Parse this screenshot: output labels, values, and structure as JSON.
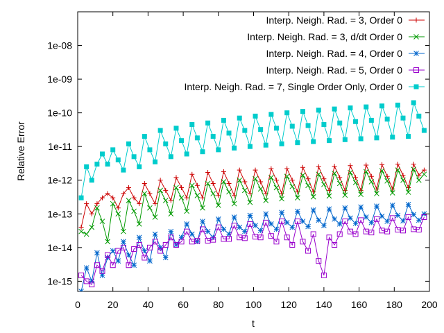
{
  "chart_data": {
    "type": "line",
    "title": "",
    "xlabel": "t",
    "ylabel": "Relative Error",
    "xscale": "linear",
    "yscale": "log",
    "xlim": [
      0,
      200
    ],
    "ylim": [
      5e-16,
      1e-07
    ],
    "xticks": [
      0,
      20,
      40,
      60,
      80,
      100,
      120,
      140,
      160,
      180,
      200
    ],
    "xtick_labels": [
      "0",
      "20",
      "40",
      "60",
      "80",
      "100",
      "120",
      "140",
      "160",
      "180",
      "200"
    ],
    "yticks": [
      1e-15,
      1e-14,
      1e-13,
      1e-12,
      1e-11,
      1e-10,
      1e-09,
      1e-08
    ],
    "ytick_labels": [
      "1e-15",
      "1e-14",
      "1e-13",
      "1e-12",
      "1e-11",
      "1e-10",
      "1e-09",
      "1e-08"
    ],
    "legend_position": "top-right",
    "series": [
      {
        "name": "Interp. Neigh. Rad. = 3, Order 0",
        "color": "#cc0000",
        "marker": "plus",
        "x": [
          2,
          5,
          8,
          11,
          14,
          17,
          20,
          23,
          26,
          29,
          32,
          35,
          38,
          41,
          44,
          47,
          50,
          53,
          56,
          59,
          62,
          65,
          68,
          71,
          74,
          77,
          80,
          83,
          86,
          89,
          92,
          95,
          98,
          101,
          104,
          107,
          110,
          113,
          116,
          119,
          122,
          125,
          128,
          131,
          134,
          137,
          140,
          143,
          146,
          149,
          152,
          155,
          158,
          161,
          164,
          167,
          170,
          173,
          176,
          179,
          182,
          185,
          188,
          191,
          194,
          197
        ],
        "values": [
          4e-14,
          2e-13,
          1e-13,
          2e-13,
          3e-13,
          4e-13,
          3e-13,
          1.5e-13,
          4e-13,
          6e-13,
          3e-13,
          2e-13,
          8e-13,
          4e-13,
          2e-13,
          1e-12,
          5e-13,
          2.5e-13,
          1.2e-12,
          6e-13,
          3e-13,
          1.5e-12,
          7e-13,
          3e-13,
          1.7e-12,
          8e-13,
          3.5e-13,
          1.8e-12,
          8e-13,
          3.5e-13,
          2e-12,
          9e-13,
          4e-13,
          2e-12,
          9e-13,
          4e-13,
          2.2e-12,
          1e-12,
          4e-13,
          2.2e-12,
          1e-12,
          4.5e-13,
          2.4e-12,
          1.1e-12,
          4.5e-13,
          2.5e-12,
          1.1e-12,
          5e-13,
          2.6e-12,
          1.2e-12,
          5e-13,
          2.7e-12,
          1.2e-12,
          5e-13,
          2.8e-12,
          1.3e-12,
          5.5e-13,
          2.9e-12,
          1.3e-12,
          5.5e-13,
          3e-12,
          1.4e-12,
          6e-13,
          3e-12,
          1.4e-12,
          2e-12
        ]
      },
      {
        "name": "Interp. Neigh. Rad. = 3, d/dt Order 0",
        "color": "#009900",
        "marker": "cross",
        "x": [
          2,
          5,
          8,
          11,
          14,
          17,
          20,
          23,
          26,
          29,
          32,
          35,
          38,
          41,
          44,
          47,
          50,
          53,
          56,
          59,
          62,
          65,
          68,
          71,
          74,
          77,
          80,
          83,
          86,
          89,
          92,
          95,
          98,
          101,
          104,
          107,
          110,
          113,
          116,
          119,
          122,
          125,
          128,
          131,
          134,
          137,
          140,
          143,
          146,
          149,
          152,
          155,
          158,
          161,
          164,
          167,
          170,
          173,
          176,
          179,
          182,
          185,
          188,
          191,
          194,
          197
        ],
        "values": [
          3e-14,
          2.5e-14,
          4e-14,
          1.5e-13,
          6e-14,
          1.5e-14,
          2e-13,
          1e-13,
          3e-14,
          2.5e-13,
          1.2e-13,
          5e-14,
          4e-13,
          1.5e-13,
          8e-14,
          5e-13,
          2.5e-13,
          1e-13,
          6e-13,
          3e-13,
          1.2e-13,
          7e-13,
          3.5e-13,
          1.5e-13,
          8e-13,
          4e-13,
          1.8e-13,
          9e-13,
          4.5e-13,
          2e-13,
          1e-12,
          5e-13,
          2.2e-13,
          1.1e-12,
          5.5e-13,
          2.5e-13,
          1.2e-12,
          6e-13,
          2.8e-13,
          1.3e-12,
          6.5e-13,
          3e-13,
          1.4e-12,
          7e-13,
          3.2e-13,
          1.5e-12,
          7.5e-13,
          3.4e-13,
          1.6e-12,
          8e-13,
          3.6e-13,
          1.7e-12,
          8.5e-13,
          3.8e-13,
          1.8e-12,
          9e-13,
          4e-13,
          1.9e-12,
          9.5e-13,
          4.2e-13,
          2e-12,
          1e-12,
          4.4e-13,
          2.1e-12,
          1e-12,
          1.5e-12
        ]
      },
      {
        "name": "Interp. Neigh. Rad. = 4, Order 0",
        "color": "#0066cc",
        "marker": "star",
        "x": [
          2,
          5,
          8,
          11,
          14,
          17,
          20,
          23,
          26,
          29,
          32,
          35,
          38,
          41,
          44,
          47,
          50,
          53,
          56,
          59,
          62,
          65,
          68,
          71,
          74,
          77,
          80,
          83,
          86,
          89,
          92,
          95,
          98,
          101,
          104,
          107,
          110,
          113,
          116,
          119,
          122,
          125,
          128,
          131,
          134,
          137,
          140,
          143,
          146,
          149,
          152,
          155,
          158,
          161,
          164,
          167,
          170,
          173,
          176,
          179,
          182,
          185,
          188,
          191,
          194,
          197
        ],
        "values": [
          5e-16,
          2.5e-15,
          1e-15,
          7e-15,
          1.5e-15,
          5e-15,
          8e-15,
          4e-15,
          1.5e-14,
          6e-15,
          3e-15,
          2e-14,
          8e-15,
          4e-15,
          2.5e-14,
          1e-14,
          5e-15,
          3e-14,
          1.2e-14,
          2e-14,
          5e-14,
          2.5e-14,
          1.5e-14,
          6e-14,
          3e-14,
          2e-14,
          7e-14,
          3.5e-14,
          2.5e-14,
          8e-14,
          4e-14,
          3e-14,
          9e-14,
          4.5e-14,
          3.2e-14,
          1e-13,
          5e-14,
          3.5e-14,
          1.1e-13,
          5.5e-14,
          4e-14,
          1.2e-13,
          6e-14,
          4.2e-14,
          1.3e-13,
          6.5e-14,
          4.5e-14,
          1.4e-13,
          7e-14,
          5e-14,
          1.5e-13,
          7.5e-14,
          5.2e-14,
          1.6e-13,
          8e-14,
          5.5e-14,
          1.7e-13,
          8.5e-14,
          6e-14,
          1.8e-13,
          9e-14,
          6.2e-14,
          1.9e-13,
          9.5e-14,
          6.5e-14,
          1e-13
        ]
      },
      {
        "name": "Interp. Neigh. Rad. = 5, Order 0",
        "color": "#9900cc",
        "marker": "square",
        "x": [
          2,
          5,
          8,
          11,
          14,
          17,
          20,
          23,
          26,
          29,
          32,
          35,
          38,
          41,
          44,
          47,
          50,
          53,
          56,
          59,
          62,
          65,
          68,
          71,
          74,
          77,
          80,
          83,
          86,
          89,
          92,
          95,
          98,
          101,
          104,
          107,
          110,
          113,
          116,
          119,
          122,
          125,
          128,
          131,
          134,
          137,
          140,
          143,
          146,
          149,
          152,
          155,
          158,
          161,
          164,
          167,
          170,
          173,
          176,
          179,
          182,
          185,
          188,
          191,
          194,
          197
        ],
        "values": [
          1.5e-15,
          1e-15,
          8e-16,
          3e-15,
          2e-15,
          6e-15,
          3e-15,
          8e-15,
          1e-14,
          3e-15,
          9e-15,
          1.2e-14,
          5e-15,
          1e-14,
          1.5e-14,
          8e-15,
          1.2e-14,
          2e-14,
          1.2e-14,
          1.5e-14,
          3e-14,
          1.5e-14,
          1.6e-14,
          3.5e-14,
          1.6e-14,
          1.7e-14,
          4e-14,
          1.8e-14,
          1.8e-14,
          4.5e-14,
          2e-14,
          1.9e-14,
          5e-14,
          2.1e-14,
          2e-14,
          5.5e-14,
          2.2e-14,
          1.5e-14,
          6e-14,
          2e-14,
          1.2e-14,
          6e-14,
          1.5e-14,
          8e-15,
          2.5e-14,
          4e-15,
          1.5e-15,
          2e-14,
          1.2e-14,
          2.5e-14,
          6e-14,
          3e-14,
          2.5e-14,
          6.5e-14,
          3e-14,
          2.8e-14,
          7e-14,
          3.2e-14,
          3e-14,
          7.5e-14,
          3.4e-14,
          3.2e-14,
          8e-14,
          3.5e-14,
          3.4e-14,
          8e-14
        ]
      },
      {
        "name": "Interp. Neigh. Rad. = 7, Single Order Only, Order 0",
        "color": "#00cccc",
        "marker": "filled-square",
        "x": [
          2,
          5,
          8,
          11,
          14,
          17,
          20,
          23,
          26,
          29,
          32,
          35,
          38,
          41,
          44,
          47,
          50,
          53,
          56,
          59,
          62,
          65,
          68,
          71,
          74,
          77,
          80,
          83,
          86,
          89,
          92,
          95,
          98,
          101,
          104,
          107,
          110,
          113,
          116,
          119,
          122,
          125,
          128,
          131,
          134,
          137,
          140,
          143,
          146,
          149,
          152,
          155,
          158,
          161,
          164,
          167,
          170,
          173,
          176,
          179,
          182,
          185,
          188,
          191,
          194,
          197
        ],
        "values": [
          3e-13,
          2.5e-12,
          1e-12,
          3e-12,
          6e-12,
          3e-12,
          8e-12,
          4e-12,
          2e-12,
          1.2e-11,
          5e-12,
          2.5e-12,
          2e-11,
          8e-12,
          3.5e-12,
          3e-11,
          1.2e-11,
          5e-12,
          3.5e-11,
          1.5e-11,
          6e-12,
          4.5e-11,
          1.8e-11,
          7e-12,
          5e-11,
          2e-11,
          8e-12,
          6e-11,
          2.5e-11,
          9e-12,
          7e-11,
          3e-11,
          1e-11,
          8e-11,
          3.2e-11,
          1.1e-11,
          9e-11,
          3.5e-11,
          1.2e-11,
          1e-10,
          4e-11,
          1.3e-11,
          1.1e-10,
          4.2e-11,
          1.4e-11,
          1.2e-10,
          4.5e-11,
          1.5e-11,
          1.3e-10,
          5e-11,
          1.6e-11,
          1.4e-10,
          5.5e-11,
          1.7e-11,
          1.5e-10,
          6e-11,
          1.8e-11,
          1.6e-10,
          6.5e-11,
          1.9e-11,
          1.7e-10,
          7e-11,
          2e-11,
          2e-10,
          8e-11,
          3e-11
        ]
      }
    ]
  }
}
